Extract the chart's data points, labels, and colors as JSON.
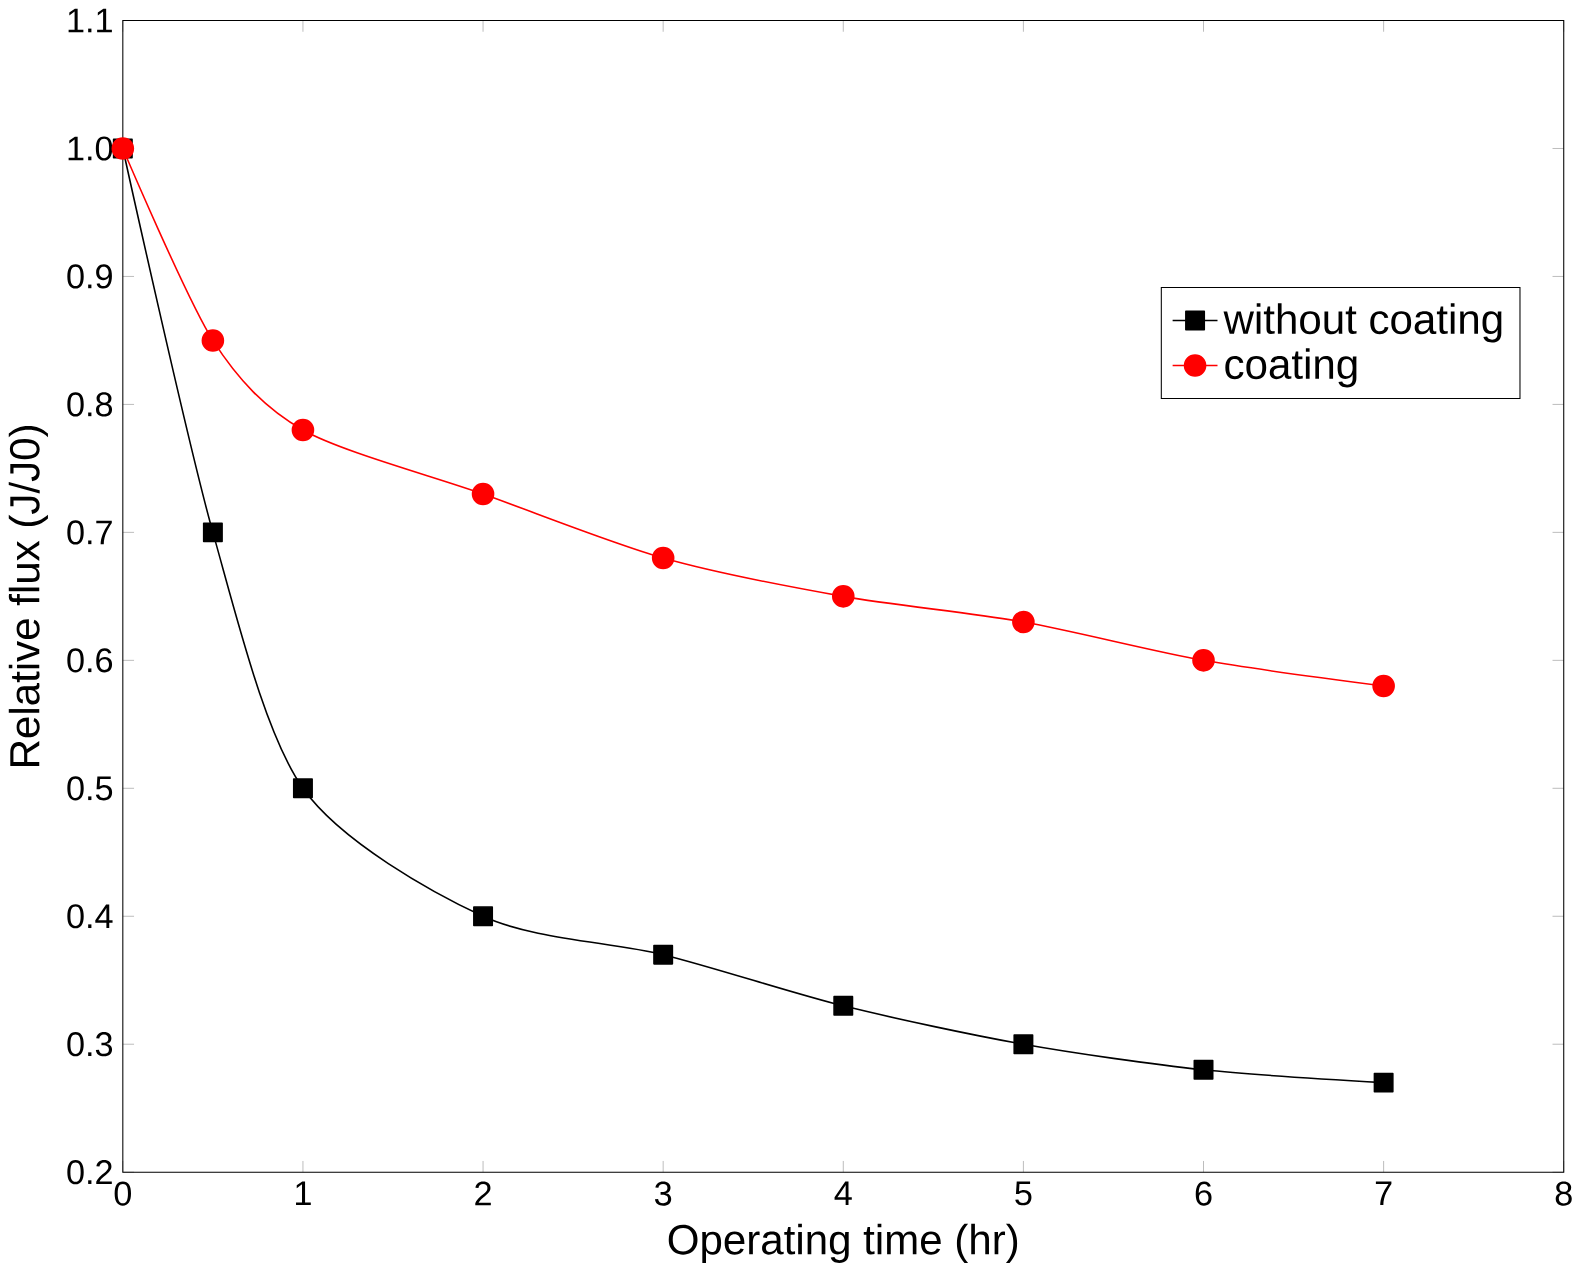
{
  "chart_data": {
    "type": "line",
    "xlabel": "Operating time (hr)",
    "ylabel": "Relative flux (J/J0)",
    "x": [
      0,
      0.5,
      1,
      2,
      3,
      4,
      5,
      6,
      7
    ],
    "series": [
      {
        "name": "without coating",
        "color": "#000000",
        "marker": "square",
        "values": [
          1.0,
          0.7,
          0.5,
          0.4,
          0.37,
          0.33,
          0.3,
          0.28,
          0.27
        ]
      },
      {
        "name": "coating",
        "color": "#ff0000",
        "marker": "circle",
        "values": [
          1.0,
          0.85,
          0.78,
          0.73,
          0.68,
          0.65,
          0.63,
          0.6,
          0.58
        ]
      }
    ],
    "xlim": [
      0,
      8
    ],
    "xticks": [
      0,
      1,
      2,
      3,
      4,
      5,
      6,
      7,
      8
    ],
    "ylim": [
      0.2,
      1.1
    ],
    "yticks": [
      0.2,
      0.3,
      0.4,
      0.5,
      0.6,
      0.7,
      0.8,
      0.9,
      {
        "value": 1.0,
        "label": "1.0"
      },
      1.1
    ],
    "legend": "right",
    "grid": false
  }
}
